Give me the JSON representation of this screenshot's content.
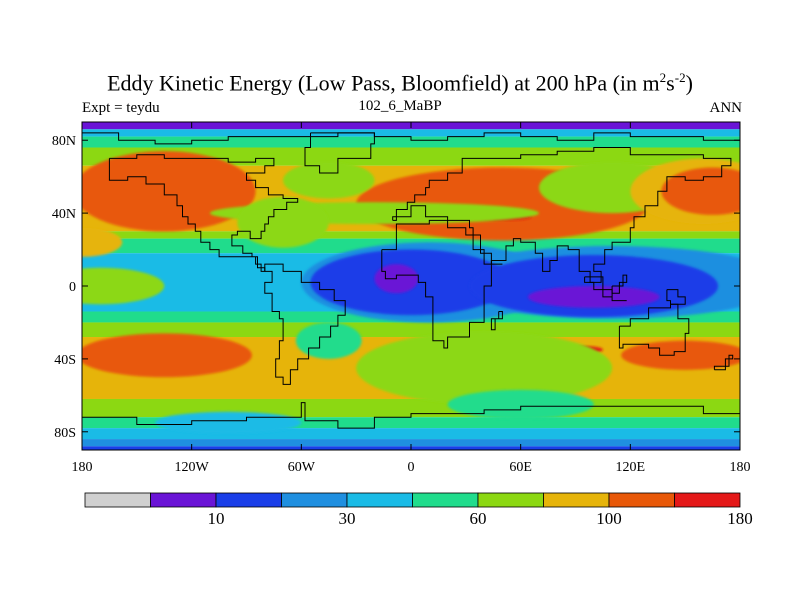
{
  "chart_data": {
    "type": "contour-map",
    "title_main": "Eddy Kinetic Energy (Low Pass, Bloomfield) at 200 hPa (in m",
    "title_sup1": "2",
    "title_mid": "s",
    "title_sup2": "-2",
    "title_end": ")",
    "left_subtitle": "Expt = teydu",
    "center_subtitle": "102_6_MaBP",
    "right_subtitle": "ANN",
    "x_ticks": [
      {
        "value": -180,
        "label": "180"
      },
      {
        "value": -120,
        "label": "120W"
      },
      {
        "value": -60,
        "label": "60W"
      },
      {
        "value": 0,
        "label": "0"
      },
      {
        "value": 60,
        "label": "60E"
      },
      {
        "value": 120,
        "label": "120E"
      },
      {
        "value": 180,
        "label": "180"
      }
    ],
    "y_ticks": [
      {
        "value": 80,
        "label": "80N"
      },
      {
        "value": 40,
        "label": "40N"
      },
      {
        "value": 0,
        "label": "0"
      },
      {
        "value": -40,
        "label": "40S"
      },
      {
        "value": -80,
        "label": "80S"
      }
    ],
    "xlim": [
      -180,
      180
    ],
    "ylim": [
      -90,
      90
    ],
    "contour_levels": [
      {
        "label": "",
        "color": "#d0d0d0"
      },
      {
        "label": "10",
        "color": "#6a14d6"
      },
      {
        "label": "",
        "color": "#1a3ee8"
      },
      {
        "label": "30",
        "color": "#1f8fe0"
      },
      {
        "label": "",
        "color": "#1abbe6"
      },
      {
        "label": "60",
        "color": "#20dc8c"
      },
      {
        "label": "",
        "color": "#8cd812"
      },
      {
        "label": "100",
        "color": "#e6b40a"
      },
      {
        "label": "",
        "color": "#e85808"
      },
      {
        "label": "180",
        "color": "#e41818"
      }
    ],
    "zonal_bands": [
      {
        "lat_top": 90,
        "lat_bottom": 86,
        "level": 1
      },
      {
        "lat_top": 86,
        "lat_bottom": 82,
        "level": 4
      },
      {
        "lat_top": 82,
        "lat_bottom": 76,
        "level": 5
      },
      {
        "lat_top": 76,
        "lat_bottom": 66,
        "level": 6
      },
      {
        "lat_top": 66,
        "lat_bottom": 30,
        "level": 7
      },
      {
        "lat_top": 30,
        "lat_bottom": 26,
        "level": 6
      },
      {
        "lat_top": 26,
        "lat_bottom": 18,
        "level": 5
      },
      {
        "lat_top": 18,
        "lat_bottom": -14,
        "level": 4
      },
      {
        "lat_top": -14,
        "lat_bottom": -20,
        "level": 5
      },
      {
        "lat_top": -20,
        "lat_bottom": -28,
        "level": 6
      },
      {
        "lat_top": -28,
        "lat_bottom": -62,
        "level": 7
      },
      {
        "lat_top": -62,
        "lat_bottom": -72,
        "level": 6
      },
      {
        "lat_top": -72,
        "lat_bottom": -78,
        "level": 5
      },
      {
        "lat_top": -78,
        "lat_bottom": -84,
        "level": 4
      },
      {
        "lat_top": -84,
        "lat_bottom": -88,
        "level": 3
      },
      {
        "lat_top": -88,
        "lat_bottom": -90,
        "level": 2
      }
    ],
    "blobs": [
      {
        "lon": -135,
        "lat": 52,
        "rlon": 50,
        "rlat": 22,
        "level": 8
      },
      {
        "lon": 50,
        "lat": 45,
        "rlon": 80,
        "rlat": 20,
        "level": 8
      },
      {
        "lon": 110,
        "lat": 54,
        "rlon": 40,
        "rlat": 14,
        "level": 6
      },
      {
        "lon": 160,
        "lat": 52,
        "rlon": 40,
        "rlat": 18,
        "level": 7
      },
      {
        "lon": 165,
        "lat": 52,
        "rlon": 28,
        "rlat": 13,
        "level": 8
      },
      {
        "lon": 50,
        "lat": 38,
        "rlon": 16,
        "rlat": 2,
        "level": 9
      },
      {
        "lon": -20,
        "lat": 40,
        "rlon": 90,
        "rlat": 6,
        "level": 6
      },
      {
        "lon": -70,
        "lat": 35,
        "rlon": 25,
        "rlat": 14,
        "level": 6
      },
      {
        "lon": -45,
        "lat": 58,
        "rlon": 25,
        "rlat": 10,
        "level": 6
      },
      {
        "lon": -180,
        "lat": 24,
        "rlon": 22,
        "rlat": 8,
        "level": 7
      },
      {
        "lon": -170,
        "lat": 0,
        "rlon": 35,
        "rlat": 10,
        "level": 6
      },
      {
        "lon": 180,
        "lat": 2,
        "rlon": 30,
        "rlat": 12,
        "level": 6
      },
      {
        "lon": 10,
        "lat": 2,
        "rlon": 70,
        "rlat": 22,
        "level": 3
      },
      {
        "lon": 110,
        "lat": 2,
        "rlon": 95,
        "rlat": 20,
        "level": 3
      },
      {
        "lon": 0,
        "lat": 2,
        "rlon": 55,
        "rlat": 18,
        "level": 2
      },
      {
        "lon": 100,
        "lat": 0,
        "rlon": 68,
        "rlat": 17,
        "level": 2
      },
      {
        "lon": -8,
        "lat": 4,
        "rlon": 12,
        "rlat": 8,
        "level": 1
      },
      {
        "lon": 100,
        "lat": -6,
        "rlon": 36,
        "rlat": 6,
        "level": 1
      },
      {
        "lon": -135,
        "lat": -38,
        "rlon": 48,
        "rlat": 12,
        "level": 8
      },
      {
        "lon": 95,
        "lat": -35,
        "rlon": 10,
        "rlat": 2,
        "level": 9
      },
      {
        "lon": 150,
        "lat": -38,
        "rlon": 35,
        "rlat": 8,
        "level": 8
      },
      {
        "lon": 40,
        "lat": -45,
        "rlon": 70,
        "rlat": 20,
        "level": 6
      },
      {
        "lon": 60,
        "lat": -65,
        "rlon": 40,
        "rlat": 8,
        "level": 5
      },
      {
        "lon": -45,
        "lat": -30,
        "rlon": 18,
        "rlat": 10,
        "level": 5
      },
      {
        "lon": -100,
        "lat": -75,
        "rlon": 40,
        "rlat": 6,
        "level": 4
      }
    ],
    "coastlines": [
      [
        [
          -180,
          84
        ],
        [
          -160,
          80
        ],
        [
          -140,
          78
        ],
        [
          -120,
          80
        ],
        [
          -100,
          82
        ],
        [
          -80,
          82
        ],
        [
          -60,
          82
        ],
        [
          -40,
          84
        ],
        [
          -20,
          82
        ],
        [
          0,
          80
        ],
        [
          20,
          82
        ],
        [
          40,
          84
        ],
        [
          60,
          82
        ],
        [
          80,
          80
        ],
        [
          100,
          84
        ],
        [
          120,
          82
        ],
        [
          140,
          82
        ],
        [
          160,
          80
        ],
        [
          180,
          80
        ]
      ],
      [
        [
          -165,
          70
        ],
        [
          -150,
          72
        ],
        [
          -135,
          70
        ],
        [
          -120,
          70
        ],
        [
          -100,
          68
        ],
        [
          -85,
          70
        ],
        [
          -75,
          66
        ],
        [
          -80,
          62
        ],
        [
          -90,
          58
        ],
        [
          -85,
          54
        ],
        [
          -78,
          50
        ],
        [
          -70,
          48
        ],
        [
          -62,
          46
        ],
        [
          -68,
          42
        ],
        [
          -75,
          38
        ],
        [
          -78,
          34
        ],
        [
          -80,
          30
        ],
        [
          -82,
          26
        ],
        [
          -88,
          30
        ],
        [
          -95,
          28
        ],
        [
          -98,
          22
        ],
        [
          -92,
          18
        ],
        [
          -87,
          16
        ],
        [
          -84,
          10
        ],
        [
          -80,
          8
        ],
        [
          -82,
          12
        ],
        [
          -85,
          16
        ],
        [
          -95,
          16
        ],
        [
          -105,
          20
        ],
        [
          -110,
          24
        ],
        [
          -115,
          30
        ],
        [
          -118,
          34
        ],
        [
          -122,
          38
        ],
        [
          -125,
          44
        ],
        [
          -128,
          50
        ],
        [
          -135,
          56
        ],
        [
          -145,
          60
        ],
        [
          -155,
          58
        ],
        [
          -165,
          62
        ],
        [
          -165,
          70
        ]
      ],
      [
        [
          -55,
          84
        ],
        [
          -30,
          84
        ],
        [
          -20,
          78
        ],
        [
          -22,
          70
        ],
        [
          -40,
          62
        ],
        [
          -50,
          66
        ],
        [
          -58,
          76
        ],
        [
          -55,
          84
        ]
      ],
      [
        [
          -80,
          8
        ],
        [
          -76,
          2
        ],
        [
          -80,
          -4
        ],
        [
          -76,
          -14
        ],
        [
          -72,
          -18
        ],
        [
          -70,
          -30
        ],
        [
          -72,
          -40
        ],
        [
          -74,
          -50
        ],
        [
          -70,
          -54
        ],
        [
          -66,
          -54
        ],
        [
          -66,
          -46
        ],
        [
          -62,
          -40
        ],
        [
          -56,
          -34
        ],
        [
          -50,
          -28
        ],
        [
          -44,
          -22
        ],
        [
          -40,
          -16
        ],
        [
          -36,
          -8
        ],
        [
          -42,
          -2
        ],
        [
          -50,
          2
        ],
        [
          -60,
          8
        ],
        [
          -70,
          12
        ],
        [
          -80,
          8
        ]
      ],
      [
        [
          -10,
          36
        ],
        [
          -8,
          42
        ],
        [
          -2,
          46
        ],
        [
          2,
          50
        ],
        [
          8,
          54
        ],
        [
          10,
          58
        ],
        [
          20,
          62
        ],
        [
          28,
          70
        ],
        [
          40,
          70
        ],
        [
          60,
          72
        ],
        [
          80,
          74
        ],
        [
          100,
          76
        ],
        [
          120,
          72
        ],
        [
          140,
          72
        ],
        [
          160,
          70
        ],
        [
          175,
          66
        ],
        [
          170,
          60
        ],
        [
          160,
          58
        ],
        [
          150,
          60
        ],
        [
          140,
          52
        ],
        [
          135,
          44
        ],
        [
          128,
          38
        ],
        [
          122,
          32
        ],
        [
          120,
          24
        ],
        [
          110,
          20
        ],
        [
          106,
          12
        ],
        [
          100,
          8
        ],
        [
          104,
          2
        ],
        [
          98,
          8
        ],
        [
          92,
          20
        ],
        [
          86,
          22
        ],
        [
          80,
          14
        ],
        [
          76,
          8
        ],
        [
          72,
          18
        ],
        [
          68,
          24
        ],
        [
          60,
          26
        ],
        [
          56,
          22
        ],
        [
          52,
          14
        ],
        [
          44,
          12
        ],
        [
          40,
          20
        ],
        [
          34,
          28
        ],
        [
          30,
          32
        ],
        [
          20,
          38
        ],
        [
          12,
          38
        ],
        [
          8,
          44
        ],
        [
          0,
          38
        ],
        [
          -10,
          36
        ]
      ],
      [
        [
          -16,
          20
        ],
        [
          -8,
          34
        ],
        [
          10,
          36
        ],
        [
          32,
          32
        ],
        [
          34,
          28
        ],
        [
          38,
          18
        ],
        [
          44,
          12
        ],
        [
          50,
          12
        ],
        [
          44,
          0
        ],
        [
          40,
          -10
        ],
        [
          40,
          -20
        ],
        [
          32,
          -28
        ],
        [
          20,
          -34
        ],
        [
          18,
          -30
        ],
        [
          12,
          -16
        ],
        [
          12,
          -6
        ],
        [
          8,
          2
        ],
        [
          4,
          6
        ],
        [
          -8,
          4
        ],
        [
          -14,
          8
        ],
        [
          -16,
          20
        ]
      ],
      [
        [
          48,
          -14
        ],
        [
          50,
          -18
        ],
        [
          46,
          -24
        ],
        [
          44,
          -18
        ],
        [
          48,
          -14
        ]
      ],
      [
        [
          114,
          -22
        ],
        [
          120,
          -18
        ],
        [
          130,
          -12
        ],
        [
          136,
          -12
        ],
        [
          142,
          -10
        ],
        [
          146,
          -18
        ],
        [
          152,
          -26
        ],
        [
          150,
          -36
        ],
        [
          144,
          -38
        ],
        [
          136,
          -34
        ],
        [
          130,
          -32
        ],
        [
          116,
          -34
        ],
        [
          114,
          -22
        ]
      ],
      [
        [
          166,
          -46
        ],
        [
          172,
          -40
        ],
        [
          176,
          -38
        ],
        [
          174,
          -44
        ],
        [
          166,
          -46
        ]
      ],
      [
        [
          -180,
          -72
        ],
        [
          -150,
          -76
        ],
        [
          -120,
          -74
        ],
        [
          -90,
          -72
        ],
        [
          -60,
          -64
        ],
        [
          -58,
          -74
        ],
        [
          -40,
          -78
        ],
        [
          -20,
          -72
        ],
        [
          0,
          -70
        ],
        [
          20,
          -70
        ],
        [
          40,
          -68
        ],
        [
          60,
          -66
        ],
        [
          80,
          -66
        ],
        [
          100,
          -66
        ],
        [
          120,
          -66
        ],
        [
          140,
          -66
        ],
        [
          160,
          -70
        ],
        [
          180,
          -72
        ]
      ],
      [
        [
          95,
          5
        ],
        [
          105,
          -6
        ],
        [
          110,
          -8
        ],
        [
          118,
          -8
        ],
        [
          110,
          -2
        ],
        [
          100,
          2
        ],
        [
          95,
          5
        ]
      ],
      [
        [
          110,
          0
        ],
        [
          116,
          6
        ],
        [
          118,
          2
        ],
        [
          114,
          -4
        ],
        [
          110,
          0
        ]
      ],
      [
        [
          140,
          -2
        ],
        [
          146,
          -6
        ],
        [
          150,
          -10
        ],
        [
          142,
          -8
        ],
        [
          140,
          -2
        ]
      ]
    ]
  }
}
